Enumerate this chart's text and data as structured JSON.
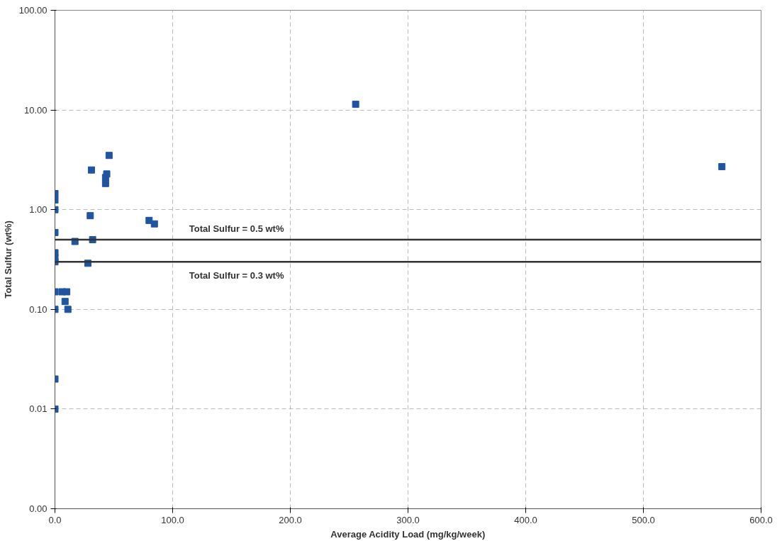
{
  "chart_data": {
    "type": "scatter",
    "xlabel": "Average Acidity Load (mg/kg/week)",
    "ylabel": "Total Sulfur (wt%)",
    "log": "y",
    "grid": true,
    "marker": "square",
    "xlim": [
      0,
      600
    ],
    "xticks": [
      {
        "value": 0,
        "label": "0.0"
      },
      {
        "value": 100,
        "label": "100.0"
      },
      {
        "value": 200,
        "label": "200.0"
      },
      {
        "value": 300,
        "label": "300.0"
      },
      {
        "value": 400,
        "label": "400.0"
      },
      {
        "value": 500,
        "label": "500.0"
      },
      {
        "value": 600,
        "label": "600.0"
      }
    ],
    "ylim": [
      0.001,
      100
    ],
    "yticks": [
      {
        "value": 0.001,
        "label": "0.00"
      },
      {
        "value": 0.01,
        "label": "0.01"
      },
      {
        "value": 0.1,
        "label": "0.10"
      },
      {
        "value": 1,
        "label": "1.00"
      },
      {
        "value": 10,
        "label": "10.00"
      },
      {
        "value": 100,
        "label": "100.00"
      }
    ],
    "series": [
      {
        "color": "#1f55a0",
        "x": [
          0,
          0,
          0,
          0,
          0,
          0,
          0,
          0,
          0,
          0,
          0,
          6,
          10,
          8.6,
          11,
          17,
          28,
          32,
          30,
          31,
          43,
          43,
          44,
          46,
          80,
          84.5,
          255.5,
          566.7
        ],
        "values": [
          1.45,
          1.25,
          1.0,
          0.59,
          0.37,
          0.33,
          0.3,
          0.15,
          0.1,
          0.02,
          0.01,
          0.15,
          0.15,
          0.12,
          0.1,
          0.48,
          0.29,
          0.5,
          0.87,
          2.5,
          1.83,
          2.1,
          2.28,
          3.5,
          0.78,
          0.72,
          11.4,
          2.7
        ]
      }
    ],
    "ref_lines": [
      {
        "axis": "y",
        "value": 0.5,
        "label": "Total Sulfur = 0.5 wt%",
        "color": "#333333"
      },
      {
        "axis": "y",
        "value": 0.3,
        "label": "Total Sulfur = 0.3 wt%",
        "color": "#333333"
      }
    ]
  }
}
